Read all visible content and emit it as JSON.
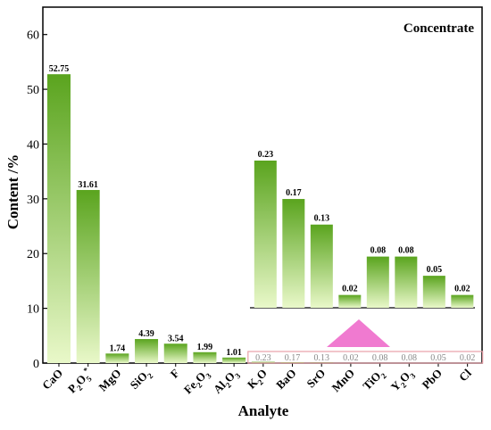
{
  "chart_data": {
    "type": "bar",
    "title": "Concentrate",
    "xlabel": "Analyte",
    "ylabel": "Content /%",
    "ylim": [
      0,
      65
    ],
    "yticks": [
      "0",
      "10",
      "20",
      "30",
      "40",
      "50",
      "60"
    ],
    "categories": [
      "CaO",
      "P2O5*",
      "MgO",
      "SiO2",
      "F",
      "Fe2O3",
      "Al2O3",
      "K2O",
      "BaO",
      "SrO",
      "MnO",
      "TiO2",
      "Y2O3",
      "PbO",
      "Cl"
    ],
    "category_markup": [
      {
        "base": "CaO"
      },
      {
        "base": "P",
        "sub": "2",
        "mid": "O",
        "sub2": "5",
        "sup": "*"
      },
      {
        "base": "MgO"
      },
      {
        "base": "SiO",
        "sub": "2"
      },
      {
        "base": "F"
      },
      {
        "base": "Fe",
        "sub": "2",
        "mid": "O",
        "sub2": "3"
      },
      {
        "base": "Al",
        "sub": "2",
        "mid": "O",
        "sub2": "3"
      },
      {
        "base": "K",
        "sub": "2",
        "mid": "O"
      },
      {
        "base": "BaO"
      },
      {
        "base": "SrO"
      },
      {
        "base": "MnO"
      },
      {
        "base": "TiO",
        "sub": "2"
      },
      {
        "base": "Y",
        "sub": "2",
        "mid": "O",
        "sub2": "3"
      },
      {
        "base": "PbO"
      },
      {
        "base": "Cl"
      }
    ],
    "values": [
      52.75,
      31.61,
      1.74,
      4.39,
      3.54,
      1.99,
      1.01,
      0.23,
      0.17,
      0.13,
      0.02,
      0.08,
      0.08,
      0.05,
      0.02
    ],
    "value_labels": [
      "52.75",
      "31.61",
      "1.74",
      "4.39",
      "3.54",
      "1.99",
      "1.01",
      "0.23",
      "0.17",
      "0.13",
      "0.02",
      "0.08",
      "0.08",
      "0.05",
      "0.02"
    ],
    "inset": {
      "categories": [
        "K2O",
        "BaO",
        "SrO",
        "MnO",
        "TiO2",
        "Y2O3",
        "PbO",
        "Cl"
      ],
      "values": [
        0.23,
        0.17,
        0.13,
        0.02,
        0.08,
        0.08,
        0.05,
        0.02
      ],
      "value_labels": [
        "0.23",
        "0.17",
        "0.13",
        "0.02",
        "0.08",
        "0.08",
        "0.05",
        "0.02"
      ]
    },
    "colors": {
      "bar_dark": "#5aa41e",
      "bar_light": "#e9f8c9",
      "arrow": "#f07ad0",
      "box": "#e8a0a8"
    },
    "grid": false
  }
}
